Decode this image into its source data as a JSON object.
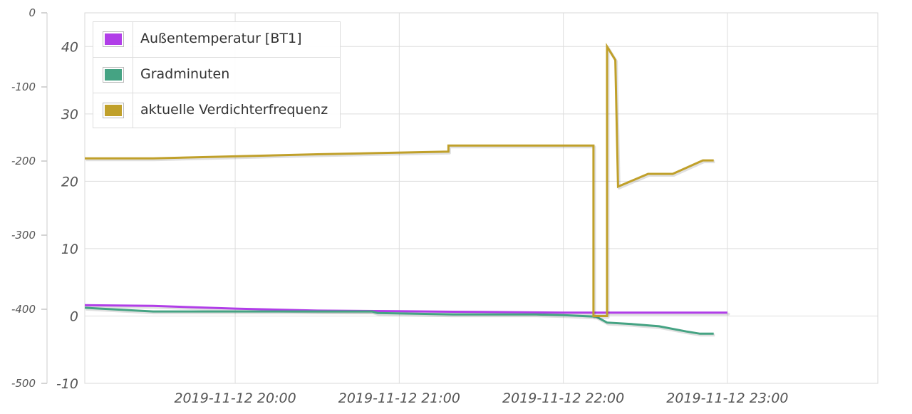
{
  "chart_data": {
    "type": "line",
    "title": "",
    "xlabel": "",
    "ylabel": "",
    "x_ticks": [
      "2019-11-12 20:00",
      "2019-11-12 21:00",
      "2019-11-12 22:00",
      "2019-11-12 23:00"
    ],
    "x_range": [
      "2019-11-12 19:05",
      "2019-11-12 23:55"
    ],
    "y_axes": [
      {
        "id": "outer",
        "ticks": [
          "0",
          "-100",
          "-200",
          "-300",
          "-400",
          "-500"
        ],
        "range": [
          -500,
          0
        ]
      },
      {
        "id": "inner",
        "ticks": [
          "40",
          "30",
          "20",
          "10",
          "0",
          "-10"
        ],
        "range": [
          -10,
          45
        ]
      }
    ],
    "grid": true,
    "legend_position": "top-left",
    "series": [
      {
        "name": "Außentemperatur [BT1]",
        "color": "#b13ee8",
        "axis": "inner",
        "points": [
          [
            "2019-11-12 19:05",
            1.6
          ],
          [
            "2019-11-12 19:30",
            1.5
          ],
          [
            "2019-11-12 20:00",
            1.1
          ],
          [
            "2019-11-12 20:30",
            0.8
          ],
          [
            "2019-11-12 21:00",
            0.7
          ],
          [
            "2019-11-12 21:30",
            0.6
          ],
          [
            "2019-11-12 22:00",
            0.5
          ],
          [
            "2019-11-12 22:30",
            0.5
          ],
          [
            "2019-11-12 23:00",
            0.5
          ],
          [
            "2019-11-12 22:55",
            0.5
          ]
        ]
      },
      {
        "name": "Gradminuten",
        "color": "#45a383",
        "axis": "outer",
        "points": [
          [
            "2019-11-12 19:05",
            -398
          ],
          [
            "2019-11-12 19:30",
            -403
          ],
          [
            "2019-11-12 20:00",
            -403
          ],
          [
            "2019-11-12 20:30",
            -403
          ],
          [
            "2019-11-12 20:50",
            -403
          ],
          [
            "2019-11-12 20:52",
            -405
          ],
          [
            "2019-11-12 21:20",
            -407
          ],
          [
            "2019-11-12 21:50",
            -407
          ],
          [
            "2019-11-12 22:00",
            -408
          ],
          [
            "2019-11-12 22:12",
            -410
          ],
          [
            "2019-11-12 22:16",
            -418
          ],
          [
            "2019-11-12 22:25",
            -420
          ],
          [
            "2019-11-12 22:35",
            -423
          ],
          [
            "2019-11-12 22:45",
            -430
          ],
          [
            "2019-11-12 22:50",
            -433
          ],
          [
            "2019-11-12 22:55",
            -433
          ]
        ]
      },
      {
        "name": "aktuelle Verdichterfrequenz",
        "color": "#c0a02a",
        "axis": "inner",
        "points": [
          [
            "2019-11-12 19:05",
            23.4
          ],
          [
            "2019-11-12 19:30",
            23.4
          ],
          [
            "2019-11-12 20:00",
            23.7
          ],
          [
            "2019-11-12 20:30",
            24.0
          ],
          [
            "2019-11-12 21:18",
            24.4
          ],
          [
            "2019-11-12 21:18",
            25.3
          ],
          [
            "2019-11-12 21:40",
            25.3
          ],
          [
            "2019-11-12 22:11",
            25.3
          ],
          [
            "2019-11-12 22:11",
            0.0
          ],
          [
            "2019-11-12 22:16",
            0.0
          ],
          [
            "2019-11-12 22:16",
            40.0
          ],
          [
            "2019-11-12 22:19",
            38.0
          ],
          [
            "2019-11-12 22:20",
            19.2
          ],
          [
            "2019-11-12 22:31",
            21.1
          ],
          [
            "2019-11-12 22:40",
            21.1
          ],
          [
            "2019-11-12 22:51",
            23.1
          ],
          [
            "2019-11-12 22:55",
            23.1
          ]
        ]
      }
    ]
  }
}
